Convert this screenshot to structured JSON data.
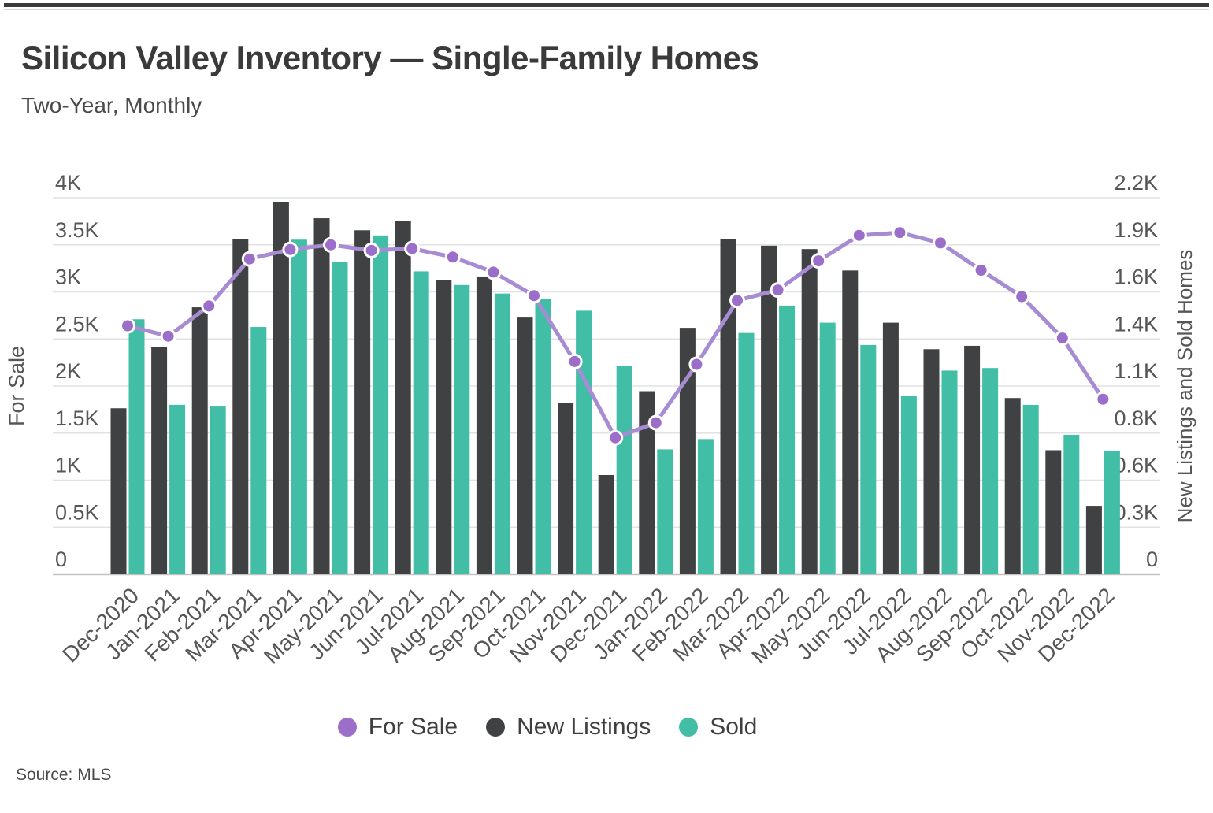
{
  "header": {
    "title": "Silicon Valley Inventory — Single-Family Homes",
    "subtitle": "Two-Year, Monthly"
  },
  "source_note": "Source: MLS",
  "colors": {
    "for_sale_line": "#a78bd3",
    "for_sale_point": "#9a6ec9",
    "new_listings_bar": "#3f4142",
    "sold_bar": "#42bda6",
    "grid": "#e2e2e2",
    "axis_line": "#c2c2c2",
    "tick_text": "#565656"
  },
  "legend": {
    "items": [
      {
        "label": "For Sale",
        "color": "#9a6ec9"
      },
      {
        "label": "New Listings",
        "color": "#3f4142"
      },
      {
        "label": "Sold",
        "color": "#42bda6"
      }
    ]
  },
  "chart_data": {
    "type": "combo",
    "categories": [
      "Dec-2020",
      "Jan-2021",
      "Feb-2021",
      "Mar-2021",
      "Apr-2021",
      "May-2021",
      "Jun-2021",
      "Jul-2021",
      "Aug-2021",
      "Sep-2021",
      "Oct-2021",
      "Nov-2021",
      "Dec-2021",
      "Jan-2022",
      "Feb-2022",
      "Mar-2022",
      "Apr-2022",
      "May-2022",
      "Jun-2022",
      "Jul-2022",
      "Aug-2022",
      "Sep-2022",
      "Oct-2022",
      "Nov-2022",
      "Dec-2022"
    ],
    "series": [
      {
        "name": "For Sale",
        "type": "line",
        "axis": "left",
        "values": [
          2640,
          2530,
          2850,
          3350,
          3450,
          3500,
          3440,
          3460,
          3370,
          3210,
          2960,
          2260,
          1450,
          1610,
          2230,
          2910,
          3020,
          3330,
          3600,
          3630,
          3520,
          3230,
          2950,
          2510,
          1860
        ]
      },
      {
        "name": "New Listings",
        "type": "bar",
        "axis": "right",
        "values": [
          970,
          1330,
          1560,
          1960,
          2175,
          2080,
          2010,
          2065,
          1720,
          1740,
          1500,
          1000,
          580,
          1070,
          1440,
          1960,
          1920,
          1900,
          1775,
          1470,
          1315,
          1335,
          1030,
          725,
          400
        ]
      },
      {
        "name": "Sold",
        "type": "bar",
        "axis": "right",
        "values": [
          1490,
          990,
          980,
          1445,
          1955,
          1825,
          1980,
          1770,
          1690,
          1640,
          1610,
          1540,
          1215,
          730,
          790,
          1410,
          1570,
          1470,
          1340,
          1040,
          1190,
          1205,
          990,
          815,
          720
        ]
      }
    ],
    "left_axis": {
      "title": "For Sale",
      "min": 0,
      "max": 4000,
      "tick_labels": [
        "0",
        "0.5K",
        "1K",
        "1.5K",
        "2K",
        "2.5K",
        "3K",
        "3.5K",
        "4K"
      ]
    },
    "right_axis": {
      "title": "New Listings and Sold Homes",
      "min": 0,
      "max": 2200,
      "tick_labels": [
        "0",
        "0.3K",
        "0.6K",
        "0.8K",
        "1.1K",
        "1.4K",
        "1.6K",
        "1.9K",
        "2.2K"
      ]
    },
    "grid": true,
    "legend_position": "bottom"
  }
}
